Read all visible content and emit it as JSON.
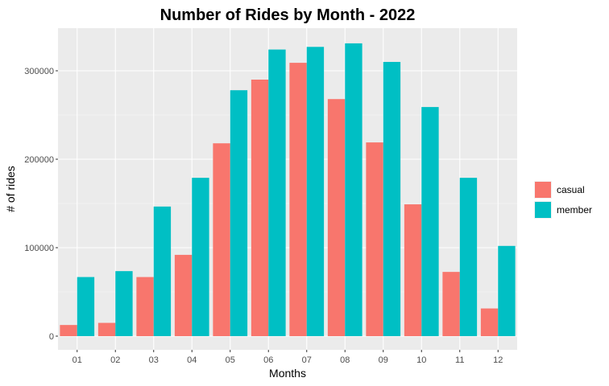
{
  "chart_data": {
    "type": "bar",
    "title": "Number of Rides by Month - 2022",
    "xlabel": "Months",
    "ylabel": "# of rides",
    "categories": [
      "01",
      "02",
      "03",
      "04",
      "05",
      "06",
      "07",
      "08",
      "09",
      "10",
      "11",
      "12"
    ],
    "series": [
      {
        "name": "casual",
        "color": "#F8766D",
        "values": [
          12600,
          15000,
          66800,
          91900,
          218000,
          290000,
          309000,
          268000,
          219000,
          149000,
          72600,
          31300
        ]
      },
      {
        "name": "member",
        "color": "#00BFC4",
        "values": [
          66800,
          73500,
          146500,
          179000,
          278000,
          324000,
          327000,
          331000,
          310000,
          259000,
          179000,
          102000
        ]
      }
    ],
    "ylim": [
      0,
      340000
    ],
    "yticks": [
      0,
      100000,
      200000,
      300000
    ],
    "ytick_labels": [
      "0",
      "100000",
      "200000",
      "300000"
    ],
    "grid": true,
    "legend_position": "right"
  }
}
